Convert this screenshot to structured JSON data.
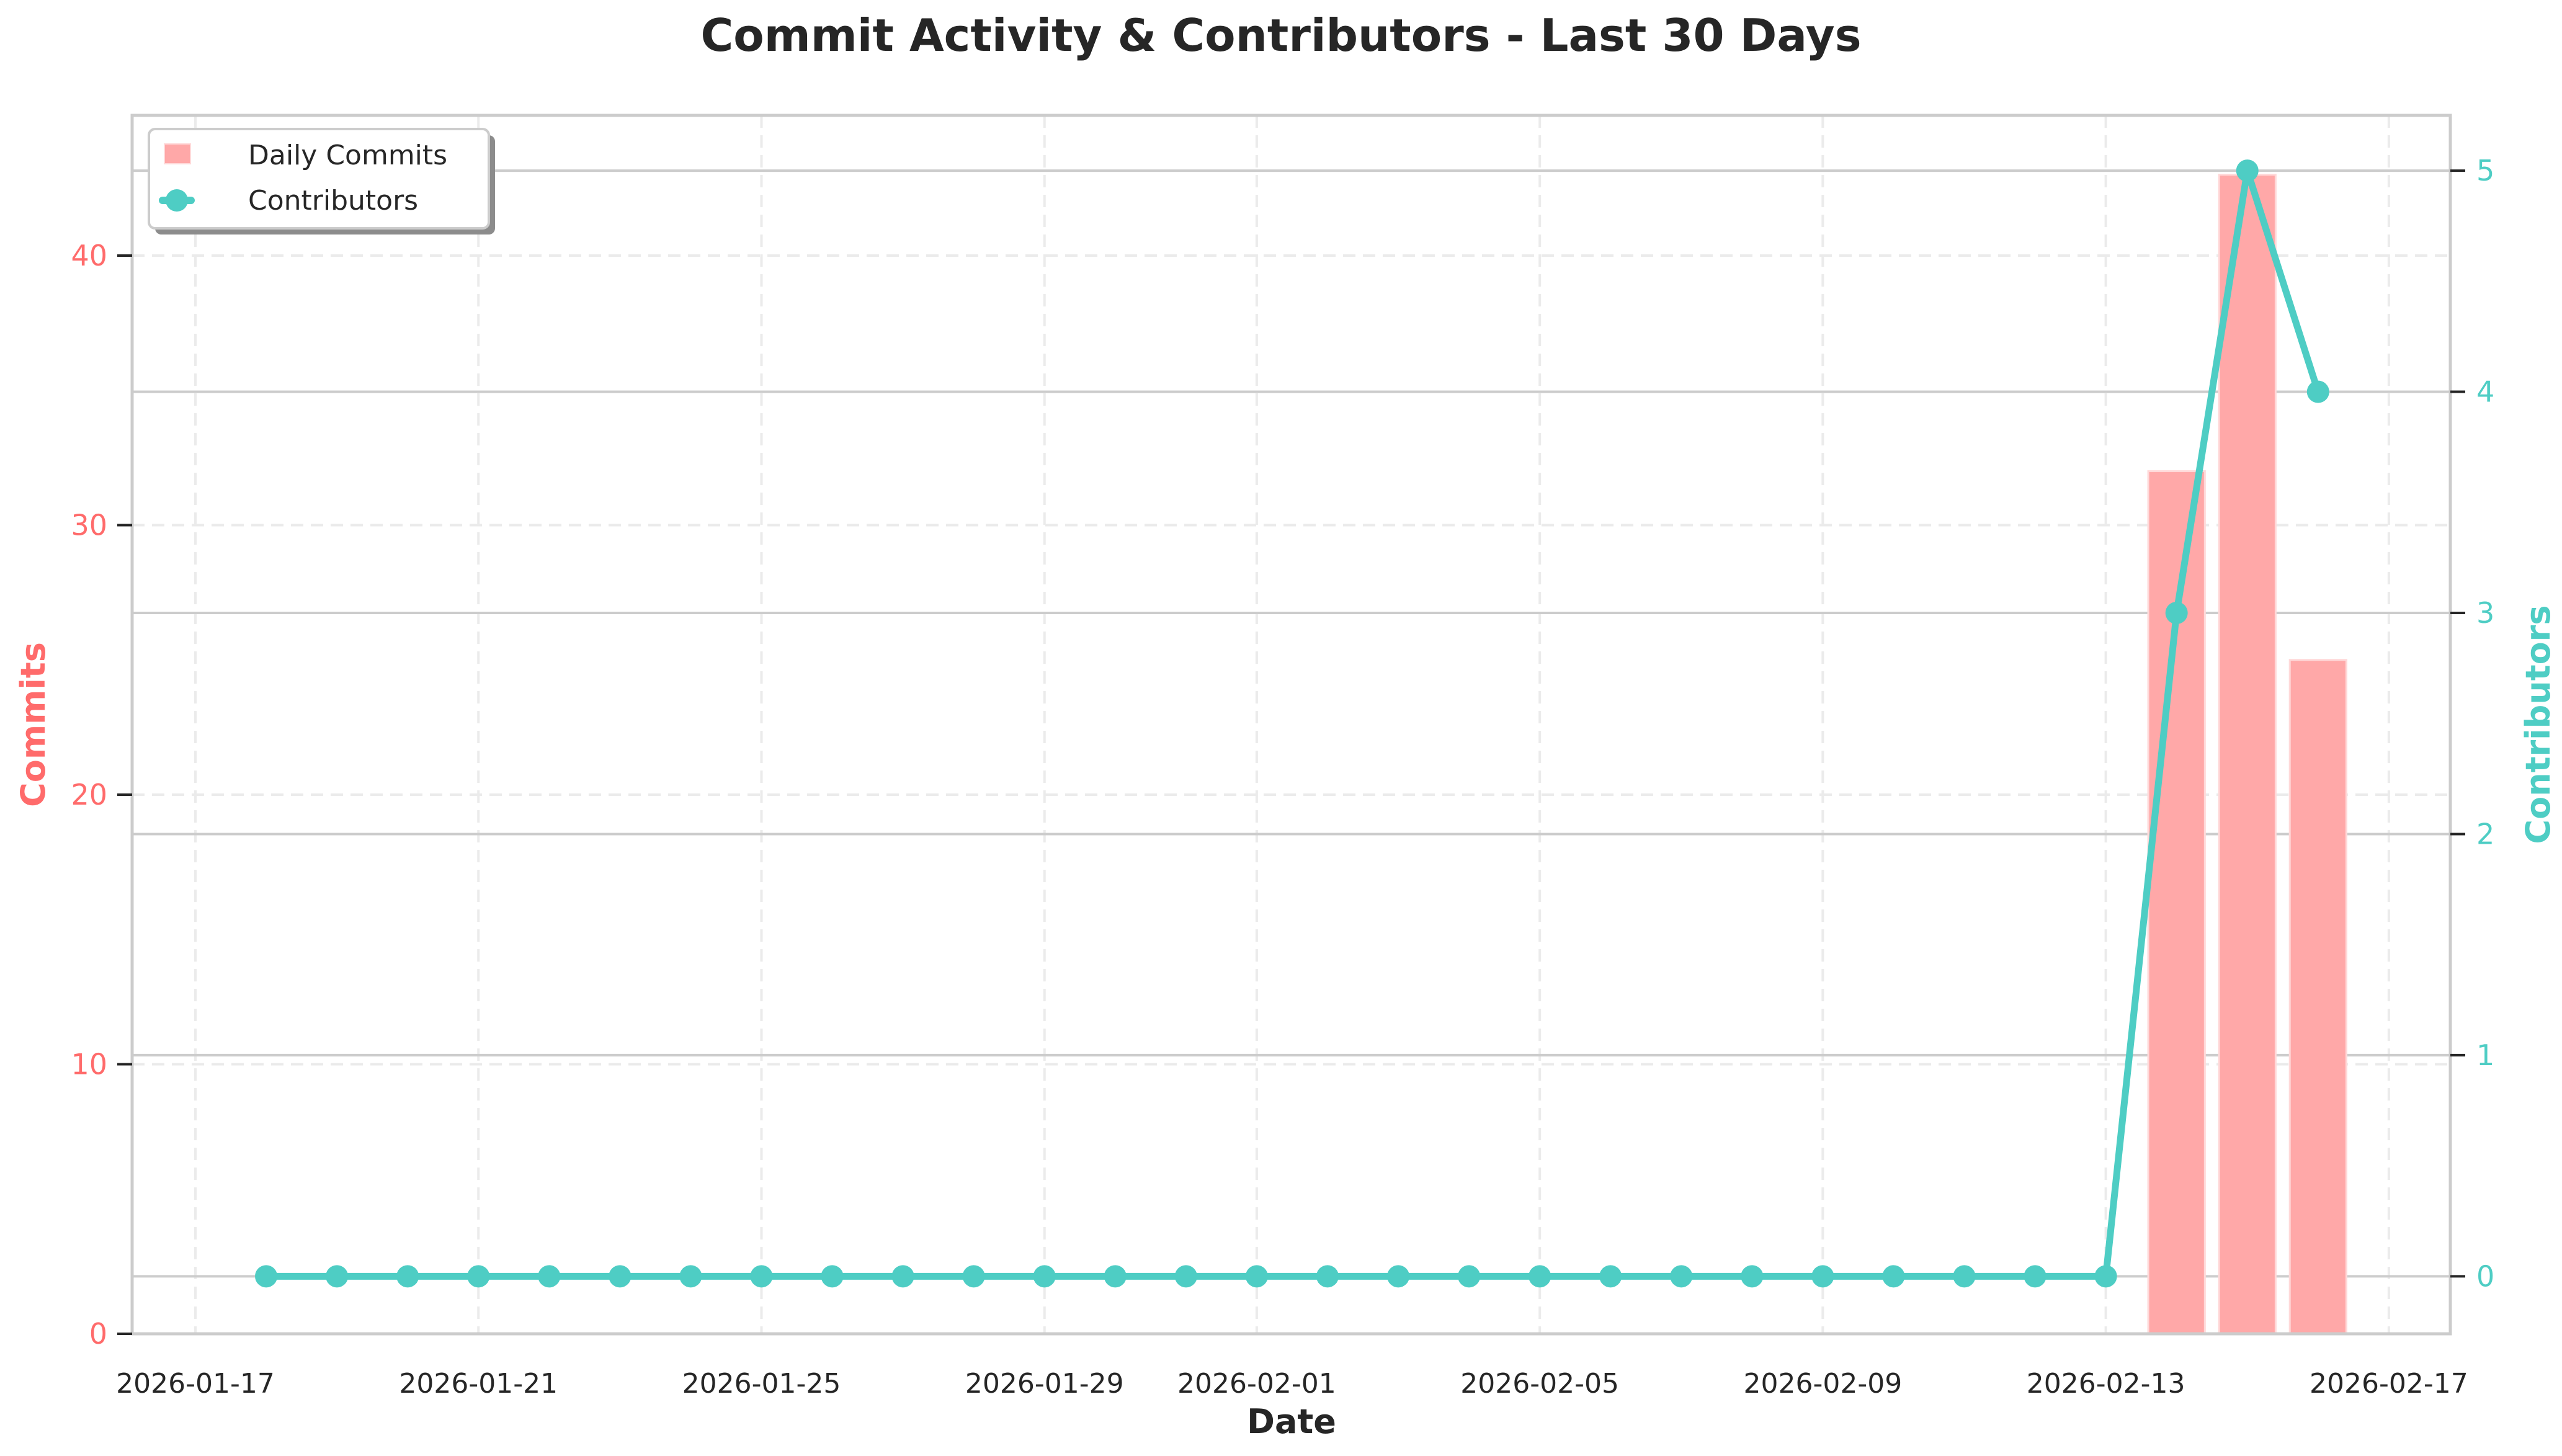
{
  "chart_data": {
    "type": "bar+line",
    "title": "Commit Activity & Contributors - Last 30 Days",
    "xlabel": "Date",
    "ylabel_left": "Commits",
    "ylabel_right": "Contributors",
    "x_ticks": [
      "2026-01-17",
      "2026-01-21",
      "2026-01-25",
      "2026-01-29",
      "2026-02-01",
      "2026-02-05",
      "2026-02-09",
      "2026-02-13",
      "2026-02-17"
    ],
    "y_left_ticks": [
      0,
      10,
      20,
      30,
      40
    ],
    "y_right_ticks": [
      0,
      1,
      2,
      3,
      4,
      5
    ],
    "ylim_left": [
      0,
      45.2
    ],
    "ylim_right": [
      -0.26,
      5.25
    ],
    "grid": true,
    "legend_position": "upper left",
    "categories": [
      "2026-01-18",
      "2026-01-19",
      "2026-01-20",
      "2026-01-21",
      "2026-01-22",
      "2026-01-23",
      "2026-01-24",
      "2026-01-25",
      "2026-01-26",
      "2026-01-27",
      "2026-01-28",
      "2026-01-29",
      "2026-01-30",
      "2026-01-31",
      "2026-02-01",
      "2026-02-02",
      "2026-02-03",
      "2026-02-04",
      "2026-02-05",
      "2026-02-06",
      "2026-02-07",
      "2026-02-08",
      "2026-02-09",
      "2026-02-10",
      "2026-02-11",
      "2026-02-12",
      "2026-02-13",
      "2026-02-14",
      "2026-02-15",
      "2026-02-16"
    ],
    "series": [
      {
        "name": "Daily Commits",
        "type": "bar",
        "axis": "left",
        "color": "#FF6B6B",
        "values": [
          0,
          0,
          0,
          0,
          0,
          0,
          0,
          0,
          0,
          0,
          0,
          0,
          0,
          0,
          0,
          0,
          0,
          0,
          0,
          0,
          0,
          0,
          0,
          0,
          0,
          0,
          0,
          32,
          43,
          25
        ]
      },
      {
        "name": "Contributors",
        "type": "line",
        "axis": "right",
        "color": "#4ECDC4",
        "values": [
          0,
          0,
          0,
          0,
          0,
          0,
          0,
          0,
          0,
          0,
          0,
          0,
          0,
          0,
          0,
          0,
          0,
          0,
          0,
          0,
          0,
          0,
          0,
          0,
          0,
          0,
          0,
          3,
          5,
          4
        ]
      }
    ]
  },
  "legend": {
    "items": [
      {
        "label": "Daily Commits"
      },
      {
        "label": "Contributors"
      }
    ]
  },
  "colors": {
    "commits_axis": "#FF6B6B",
    "contributors_axis": "#4ECDC4",
    "bar_fill": "#FFA8A8",
    "text": "#262626",
    "frame": "#cccccc",
    "grid": "#ebebeb"
  }
}
